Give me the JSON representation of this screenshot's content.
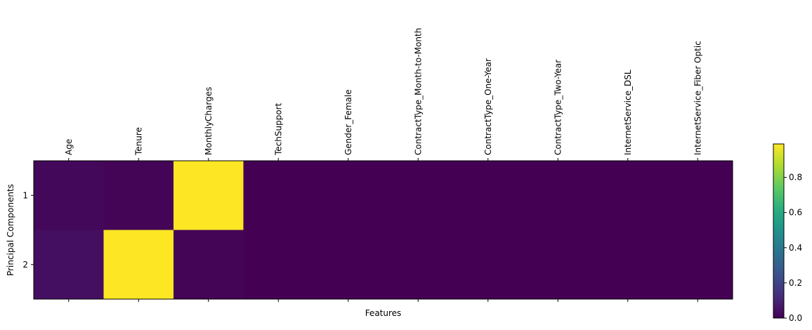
{
  "chart_data": {
    "type": "heatmap",
    "title": "",
    "xlabel": "Features",
    "ylabel": "Principal Components",
    "x_tick_position": "top",
    "categories": [
      "Age",
      "Tenure",
      "MonthlyCharges",
      "TechSupport",
      "Gender_Female",
      "ContractType_Month-to-Month",
      "ContractType_One-Year",
      "ContractType_Two-Year",
      "InternetService_DSL",
      "InternetService_Fiber Optic"
    ],
    "rows": [
      "1",
      "2"
    ],
    "values": [
      [
        0.02,
        0.01,
        0.99,
        0.0,
        0.0,
        0.0,
        0.0,
        0.0,
        0.0,
        0.0
      ],
      [
        0.04,
        0.99,
        0.01,
        0.0,
        0.0,
        0.0,
        0.0,
        0.0,
        0.0,
        0.0
      ]
    ],
    "colormap": "viridis",
    "colorbar": {
      "min": 0.0,
      "max": 0.99,
      "ticks": [
        0.0,
        0.2,
        0.4,
        0.6,
        0.8
      ],
      "tick_labels": [
        "0.0",
        "0.2",
        "0.4",
        "0.6",
        "0.8"
      ]
    },
    "grid": false,
    "legend": "none"
  }
}
